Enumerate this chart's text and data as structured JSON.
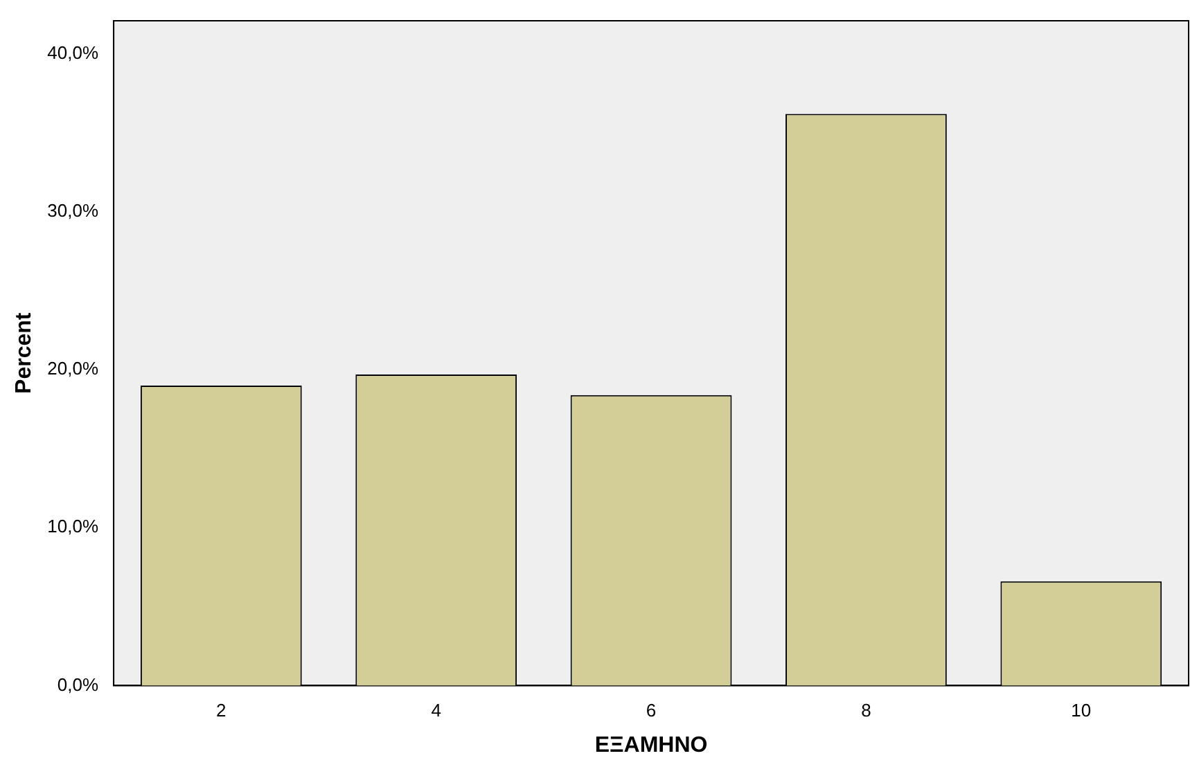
{
  "chart_data": {
    "type": "bar",
    "xlabel": "ΕΞΑΜΗΝΟ",
    "ylabel": "Percent",
    "categories": [
      "2",
      "4",
      "6",
      "8",
      "10"
    ],
    "values": [
      19.0,
      19.7,
      18.4,
      36.2,
      6.6
    ],
    "color": "#d3ce97",
    "ylim": [
      0,
      42.1
    ],
    "yticks": [
      {
        "value": 0,
        "label": "0,0%"
      },
      {
        "value": 10,
        "label": "10,0%"
      },
      {
        "value": 20,
        "label": "20,0%"
      },
      {
        "value": 30,
        "label": "30,0%"
      },
      {
        "value": 40,
        "label": "40,0%"
      }
    ],
    "grid": false,
    "legend": false
  }
}
